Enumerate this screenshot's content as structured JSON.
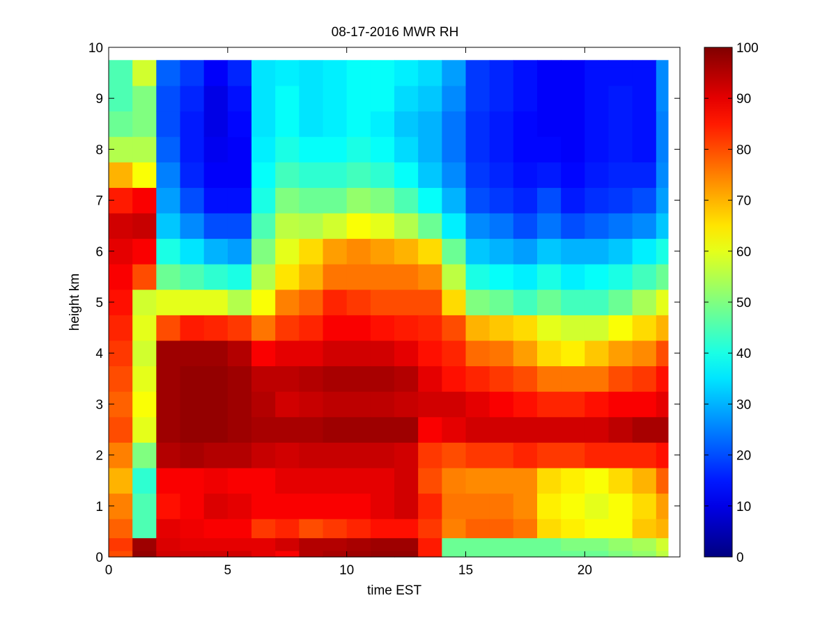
{
  "chart_data": {
    "type": "heatmap",
    "title": "08-17-2016 MWR RH",
    "xlabel": "time EST",
    "ylabel": "height km",
    "xlim": [
      0,
      24
    ],
    "ylim": [
      0,
      10
    ],
    "x_ticks": [
      "0",
      "5",
      "10",
      "15",
      "20"
    ],
    "y_ticks": [
      "0",
      "1",
      "2",
      "3",
      "4",
      "5",
      "6",
      "7",
      "8",
      "9",
      "10"
    ],
    "colorbar": {
      "colormap": "jet",
      "range": [
        0,
        100
      ],
      "ticks": [
        "0",
        "10",
        "20",
        "30",
        "40",
        "50",
        "60",
        "70",
        "80",
        "90",
        "100"
      ]
    },
    "x_centers": [
      0.5,
      1.5,
      2.5,
      3.5,
      4.5,
      5.5,
      6.5,
      7.5,
      8.5,
      9.5,
      10.5,
      11.5,
      12.5,
      13.5,
      14.5,
      15.5,
      16.5,
      17.5,
      18.5,
      19.5,
      20.5,
      21.5,
      22.5,
      23.5
    ],
    "x_range": [
      0,
      23.5
    ],
    "heights": [
      0,
      0.25,
      0.5,
      1,
      1.5,
      2,
      2.5,
      3,
      3.5,
      4,
      4.5,
      5,
      5.5,
      6,
      6.5,
      7,
      7.5,
      8,
      8.5,
      9,
      9.5,
      9.75
    ],
    "rh_profiles": [
      [
        80,
        82,
        78,
        75,
        70,
        75,
        80,
        78,
        80,
        82,
        84,
        86,
        88,
        90,
        92,
        85,
        70,
        55,
        48,
        45,
        45,
        45
      ],
      [
        98,
        97,
        45,
        45,
        42,
        50,
        60,
        62,
        60,
        58,
        60,
        58,
        80,
        88,
        93,
        88,
        62,
        55,
        50,
        50,
        58,
        58
      ],
      [
        92,
        91,
        90,
        86,
        88,
        95,
        97,
        97,
        97,
        97,
        80,
        60,
        48,
        40,
        32,
        28,
        25,
        22,
        20,
        20,
        22,
        22
      ],
      [
        92,
        90,
        89,
        88,
        88,
        96,
        98,
        98,
        98,
        97,
        85,
        60,
        45,
        35,
        26,
        20,
        16,
        15,
        15,
        16,
        18,
        18
      ],
      [
        92,
        90,
        88,
        91,
        89,
        95,
        98,
        98,
        98,
        97,
        84,
        60,
        42,
        30,
        20,
        14,
        12,
        11,
        10,
        10,
        12,
        12
      ],
      [
        92,
        90,
        88,
        90,
        88,
        95,
        97,
        97,
        97,
        95,
        82,
        55,
        40,
        28,
        20,
        14,
        12,
        12,
        13,
        14,
        16,
        16
      ],
      [
        90,
        90,
        82,
        88,
        88,
        93,
        96,
        95,
        94,
        88,
        76,
        62,
        55,
        50,
        45,
        40,
        38,
        36,
        35,
        35,
        35,
        35
      ],
      [
        88,
        92,
        84,
        88,
        90,
        92,
        96,
        92,
        94,
        90,
        82,
        75,
        65,
        60,
        56,
        50,
        44,
        40,
        38,
        38,
        36,
        36
      ],
      [
        95,
        95,
        80,
        88,
        90,
        93,
        96,
        93,
        95,
        90,
        84,
        78,
        70,
        66,
        55,
        48,
        42,
        38,
        35,
        35,
        35,
        35
      ],
      [
        96,
        95,
        82,
        88,
        90,
        93,
        97,
        94,
        96,
        92,
        88,
        84,
        76,
        72,
        58,
        48,
        42,
        38,
        36,
        36,
        36,
        36
      ],
      [
        97,
        96,
        84,
        88,
        90,
        93,
        97,
        94,
        96,
        92,
        88,
        82,
        76,
        74,
        62,
        52,
        44,
        40,
        38,
        38,
        38,
        38
      ],
      [
        98,
        97,
        86,
        90,
        90,
        93,
        97,
        94,
        96,
        92,
        86,
        80,
        76,
        72,
        60,
        50,
        42,
        38,
        36,
        38,
        38,
        38
      ],
      [
        98,
        97,
        86,
        92,
        92,
        92,
        97,
        93,
        95,
        90,
        85,
        80,
        76,
        70,
        55,
        45,
        38,
        34,
        32,
        34,
        36,
        36
      ],
      [
        85,
        85,
        82,
        84,
        80,
        82,
        88,
        92,
        90,
        86,
        84,
        80,
        74,
        66,
        48,
        38,
        32,
        30,
        30,
        32,
        34,
        34
      ],
      [
        48,
        48,
        75,
        76,
        75,
        80,
        90,
        92,
        86,
        84,
        80,
        66,
        56,
        48,
        36,
        30,
        26,
        24,
        24,
        26,
        28,
        28
      ],
      [
        48,
        48,
        78,
        76,
        74,
        82,
        92,
        90,
        84,
        77,
        70,
        50,
        40,
        32,
        26,
        20,
        18,
        17,
        17,
        18,
        18,
        18
      ],
      [
        48,
        48,
        78,
        76,
        74,
        82,
        92,
        88,
        82,
        76,
        68,
        48,
        38,
        30,
        24,
        18,
        16,
        15,
        15,
        16,
        16,
        16
      ],
      [
        48,
        48,
        76,
        74,
        74,
        84,
        92,
        86,
        80,
        72,
        66,
        44,
        36,
        28,
        20,
        16,
        14,
        13,
        13,
        14,
        14,
        14
      ],
      [
        48,
        48,
        66,
        64,
        66,
        82,
        92,
        84,
        76,
        66,
        60,
        48,
        40,
        32,
        24,
        20,
        15,
        13,
        12,
        12,
        12,
        12
      ],
      [
        48,
        50,
        64,
        62,
        64,
        82,
        92,
        84,
        76,
        64,
        58,
        44,
        36,
        30,
        20,
        15,
        13,
        12,
        12,
        12,
        12,
        12
      ],
      [
        48,
        50,
        62,
        60,
        62,
        84,
        92,
        86,
        76,
        68,
        58,
        44,
        38,
        30,
        22,
        17,
        15,
        14,
        14,
        14,
        14,
        14
      ],
      [
        50,
        52,
        62,
        62,
        66,
        84,
        94,
        88,
        80,
        72,
        62,
        48,
        40,
        32,
        24,
        18,
        16,
        15,
        15,
        15,
        14,
        14
      ],
      [
        52,
        54,
        68,
        66,
        70,
        84,
        96,
        88,
        82,
        74,
        66,
        54,
        44,
        36,
        26,
        20,
        16,
        14,
        14,
        14,
        14,
        14
      ],
      [
        56,
        58,
        70,
        72,
        78,
        86,
        96,
        90,
        86,
        80,
        70,
        60,
        48,
        40,
        32,
        28,
        26,
        25,
        25,
        26,
        26,
        26
      ]
    ]
  }
}
